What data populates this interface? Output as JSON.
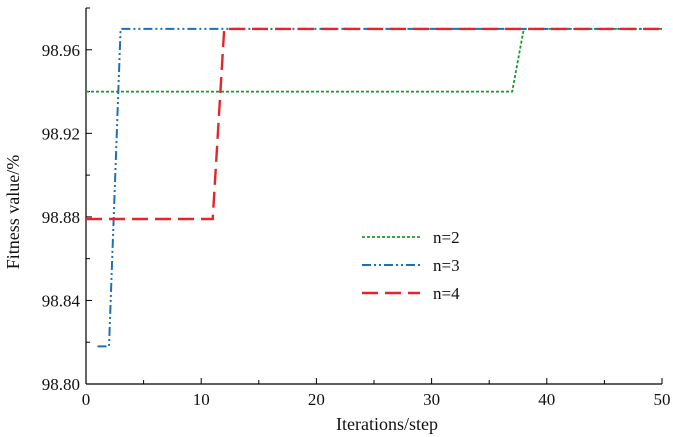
{
  "chart_data": {
    "type": "line",
    "title": "",
    "xlabel": "Iterations/step",
    "ylabel": "Fitness value/%",
    "xlim": [
      0,
      50
    ],
    "ylim": [
      98.8,
      98.98
    ],
    "xticks": [
      0,
      10,
      20,
      30,
      40,
      50
    ],
    "xtick_labels": [
      "0",
      "10",
      "20",
      "30",
      "40",
      "50"
    ],
    "yticks": [
      98.8,
      98.84,
      98.88,
      98.92,
      98.96
    ],
    "ytick_labels": [
      "98.80",
      "98.84",
      "98.88",
      "98.92",
      "98.96"
    ],
    "grid": false,
    "legend_position": "center-right",
    "series": [
      {
        "name": "n=2",
        "color": "#1a9a2a",
        "dash": "dotted",
        "x": [
          0,
          37,
          38,
          50
        ],
        "y": [
          98.94,
          98.94,
          98.97,
          98.97
        ]
      },
      {
        "name": "n=3",
        "color": "#1f6fb5",
        "dash": "dash-dot-dot",
        "x": [
          1,
          2,
          3,
          50
        ],
        "y": [
          98.818,
          98.818,
          98.97,
          98.97
        ]
      },
      {
        "name": "n=4",
        "color": "#e3262b",
        "dash": "dashed",
        "x": [
          0,
          11,
          12,
          50
        ],
        "y": [
          98.879,
          98.879,
          98.97,
          98.97
        ]
      }
    ]
  }
}
